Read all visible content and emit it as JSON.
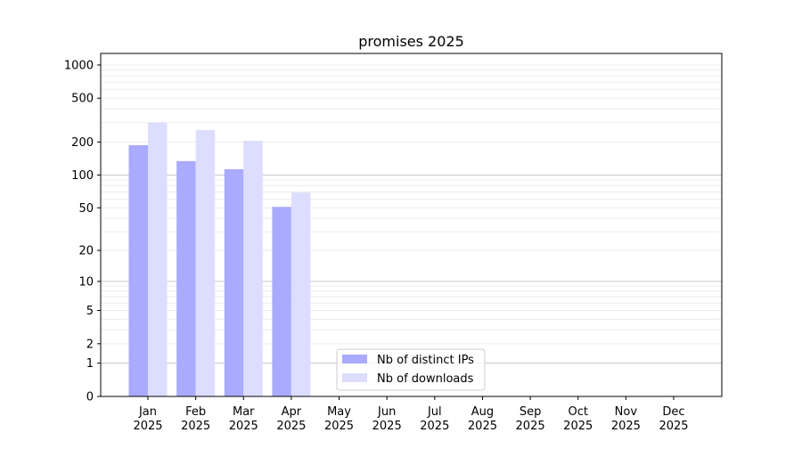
{
  "chart_data": {
    "type": "bar",
    "title": "promises 2025",
    "xlabel": "",
    "ylabel": "",
    "categories": [
      "Jan\n2025",
      "Feb\n2025",
      "Mar\n2025",
      "Apr\n2025",
      "May\n2025",
      "Jun\n2025",
      "Jul\n2025",
      "Aug\n2025",
      "Sep\n2025",
      "Oct\n2025",
      "Nov\n2025",
      "Dec\n2025"
    ],
    "series": [
      {
        "name": "Nb of distinct IPs",
        "color": "#aaaaff",
        "values": [
          187,
          134,
          113,
          51,
          null,
          null,
          null,
          null,
          null,
          null,
          null,
          null
        ]
      },
      {
        "name": "Nb of downloads",
        "color": "#ddddff",
        "values": [
          300,
          257,
          205,
          69,
          null,
          null,
          null,
          null,
          null,
          null,
          null,
          null
        ]
      }
    ],
    "yscale": "log(1+y)",
    "yticks": [
      0,
      1,
      2,
      5,
      10,
      20,
      50,
      100,
      200,
      500,
      1000
    ],
    "ylim": [
      0,
      1270
    ],
    "grid": true,
    "legend_position": "bottom-center"
  }
}
